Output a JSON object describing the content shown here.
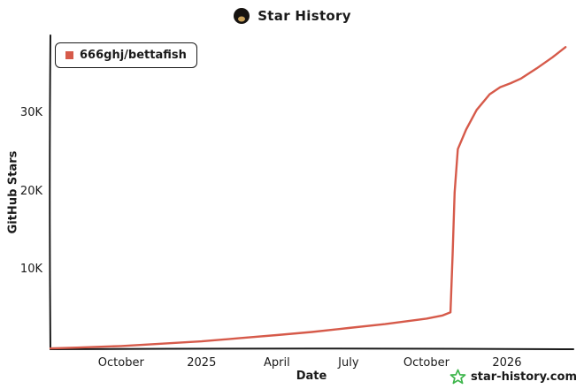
{
  "header": {
    "title": "Star History"
  },
  "legend": {
    "label": "666ghj/bettafish"
  },
  "axes": {
    "x_label": "Date",
    "y_label": "GitHub Stars"
  },
  "footer": {
    "site_label": "star-history.com"
  },
  "colors": {
    "series": "#d65a4a",
    "footer_star": "#3cb54a",
    "axis": "#1a1a1a",
    "text": "#1a1a1a"
  },
  "chart_data": {
    "type": "line",
    "title": "Star History",
    "xlabel": "Date",
    "ylabel": "GitHub Stars",
    "x_range": [
      "Aug 2024",
      "Mar 2026"
    ],
    "ylim": [
      0,
      40000
    ],
    "grid": false,
    "legend_position": "top-left",
    "x_ticks": [
      {
        "pos": 0.135,
        "label": "October"
      },
      {
        "pos": 0.289,
        "label": "2025"
      },
      {
        "pos": 0.433,
        "label": "April"
      },
      {
        "pos": 0.57,
        "label": "July"
      },
      {
        "pos": 0.719,
        "label": "October"
      },
      {
        "pos": 0.873,
        "label": "2026"
      }
    ],
    "y_ticks": [
      {
        "value": 10000,
        "label": "10K"
      },
      {
        "value": 20000,
        "label": "20K"
      },
      {
        "value": 30000,
        "label": "30K"
      }
    ],
    "series": [
      {
        "name": "666ghj/bettafish",
        "color": "#d65a4a",
        "points": [
          [
            0.0,
            100
          ],
          [
            0.05,
            200
          ],
          [
            0.135,
            400
          ],
          [
            0.2,
            650
          ],
          [
            0.289,
            1000
          ],
          [
            0.36,
            1400
          ],
          [
            0.433,
            1800
          ],
          [
            0.5,
            2200
          ],
          [
            0.57,
            2700
          ],
          [
            0.64,
            3200
          ],
          [
            0.719,
            3900
          ],
          [
            0.75,
            4300
          ],
          [
            0.765,
            4700
          ],
          [
            0.769,
            12000
          ],
          [
            0.773,
            20000
          ],
          [
            0.779,
            25500
          ],
          [
            0.795,
            28000
          ],
          [
            0.815,
            30500
          ],
          [
            0.84,
            32500
          ],
          [
            0.86,
            33400
          ],
          [
            0.88,
            33900
          ],
          [
            0.9,
            34500
          ],
          [
            0.93,
            35800
          ],
          [
            0.96,
            37200
          ],
          [
            0.985,
            38500
          ]
        ]
      }
    ]
  }
}
